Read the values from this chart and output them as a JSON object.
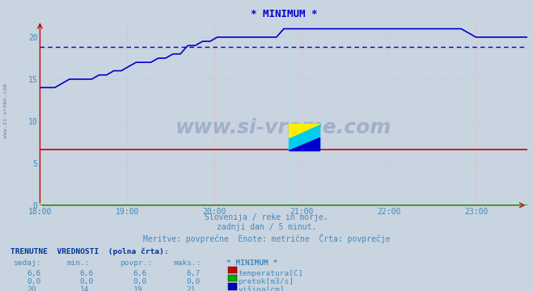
{
  "title": "* MINIMUM *",
  "title_color": "#0000cc",
  "bg_color": "#c8d4e0",
  "plot_bg_color": "#c8d4e0",
  "grid_color_major": "#ffaaaa",
  "grid_color_minor": "#ddcccc",
  "text_color": "#4488bb",
  "watermark": "www.si-vreme.com",
  "watermark_color": "#8899bb",
  "subtitle1": "Slovenija / reke in morje.",
  "subtitle2": "zadnji dan / 5 minut.",
  "subtitle3": "Meritve: povprečne  Enote: metrične  Črta: povprečje",
  "xmin": 18.0,
  "xmax": 23.583,
  "ymin": 0,
  "ymax": 22,
  "xticks": [
    18.0,
    19.0,
    20.0,
    21.0,
    22.0,
    23.0
  ],
  "xtick_labels": [
    "18:00",
    "19:00",
    "20:00",
    "21:00",
    "22:00",
    "23:00"
  ],
  "yticks": [
    0,
    5,
    10,
    15,
    20
  ],
  "temp_color": "#cc0000",
  "pretok_color": "#00aa00",
  "visina_color": "#0000cc",
  "avg_visina": 18.8,
  "temp_value": 6.6,
  "pretok_value": 0.0,
  "table_header": "TRENUTNE  VREDNOSTI  (polna črta):",
  "col_headers": [
    "sedaj:",
    "min.:",
    "povpr.:",
    "maks.:",
    "* MINIMUM *"
  ],
  "row_temp": [
    "6,6",
    "6,6",
    "6,6",
    "6,7"
  ],
  "row_pretok": [
    "0,0",
    "0,0",
    "0,0",
    "0,0"
  ],
  "row_visina": [
    "20",
    "14",
    "19",
    "21"
  ],
  "label_temp": "temperatura[C]",
  "label_pretok": "pretok[m3/s]",
  "label_visina": "višina[cm]",
  "left_label": "www.si-vreme.com"
}
